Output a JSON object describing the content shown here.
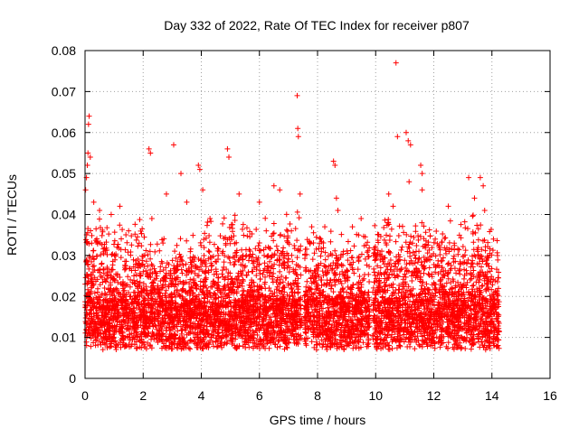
{
  "chart_data": {
    "type": "scatter",
    "title": "Day 332 of 2022, Rate Of TEC Index for receiver p807",
    "xlabel": "GPS time / hours",
    "ylabel": "ROTI / TECUs",
    "xlim": [
      0,
      16
    ],
    "ylim": [
      0,
      0.08
    ],
    "x_ticks": [
      0,
      2,
      4,
      6,
      8,
      10,
      12,
      14,
      16
    ],
    "x_tick_labels": [
      "0",
      "2",
      "4",
      "6",
      "8",
      "10",
      "12",
      "14",
      "16"
    ],
    "y_ticks": [
      0,
      0.01,
      0.02,
      0.03,
      0.04,
      0.05,
      0.06,
      0.07,
      0.08
    ],
    "y_tick_labels": [
      "0",
      "0.01",
      "0.02",
      "0.03",
      "0.04",
      "0.05",
      "0.06",
      "0.07",
      "0.08"
    ],
    "grid": true,
    "marker": "+",
    "marker_color": "#ff0000",
    "data_span_hours": [
      0,
      14.25
    ],
    "data_gaps_hours": [
      [
        7.45,
        7.55
      ],
      [
        8.0,
        8.1
      ],
      [
        9.8,
        9.9
      ]
    ],
    "series": [
      {
        "name": "ROTI",
        "points": [
          [
            0.02,
            0.046
          ],
          [
            0.05,
            0.049
          ],
          [
            0.08,
            0.052
          ],
          [
            0.1,
            0.055
          ],
          [
            0.12,
            0.062
          ],
          [
            0.14,
            0.064
          ],
          [
            0.18,
            0.054
          ],
          [
            0.3,
            0.043
          ],
          [
            0.5,
            0.041
          ],
          [
            0.9,
            0.04
          ],
          [
            1.2,
            0.042
          ],
          [
            1.5,
            0.036
          ],
          [
            2.2,
            0.056
          ],
          [
            2.25,
            0.055
          ],
          [
            2.3,
            0.039
          ],
          [
            2.8,
            0.045
          ],
          [
            3.05,
            0.057
          ],
          [
            3.3,
            0.05
          ],
          [
            3.5,
            0.043
          ],
          [
            3.9,
            0.052
          ],
          [
            3.95,
            0.051
          ],
          [
            4.05,
            0.046
          ],
          [
            4.3,
            0.039
          ],
          [
            4.9,
            0.056
          ],
          [
            4.95,
            0.054
          ],
          [
            5.3,
            0.045
          ],
          [
            6.0,
            0.043
          ],
          [
            6.5,
            0.047
          ],
          [
            6.7,
            0.046
          ],
          [
            7.1,
            0.036
          ],
          [
            7.3,
            0.069
          ],
          [
            7.32,
            0.061
          ],
          [
            7.34,
            0.059
          ],
          [
            7.4,
            0.045
          ],
          [
            7.8,
            0.037
          ],
          [
            8.55,
            0.053
          ],
          [
            8.6,
            0.052
          ],
          [
            8.65,
            0.044
          ],
          [
            8.7,
            0.041
          ],
          [
            9.2,
            0.037
          ],
          [
            9.5,
            0.039
          ],
          [
            10.45,
            0.045
          ],
          [
            10.6,
            0.042
          ],
          [
            10.7,
            0.077
          ],
          [
            10.75,
            0.059
          ],
          [
            11.05,
            0.06
          ],
          [
            11.12,
            0.058
          ],
          [
            11.2,
            0.057
          ],
          [
            11.15,
            0.048
          ],
          [
            11.55,
            0.052
          ],
          [
            11.6,
            0.05
          ],
          [
            11.6,
            0.046
          ],
          [
            12.5,
            0.042
          ],
          [
            13.2,
            0.049
          ],
          [
            13.4,
            0.044
          ],
          [
            13.6,
            0.049
          ],
          [
            13.7,
            0.047
          ],
          [
            13.75,
            0.041
          ]
        ]
      }
    ],
    "dense_cloud": {
      "description": "thousands of points between about 0.005 and 0.035",
      "typical_value": 0.013,
      "min_value": 0.003,
      "segments": [
        {
          "x_range": [
            0.0,
            2.0
          ],
          "low": 0.005,
          "high": 0.035
        },
        {
          "x_range": [
            2.0,
            4.0
          ],
          "low": 0.005,
          "high": 0.03
        },
        {
          "x_range": [
            4.0,
            7.45
          ],
          "low": 0.005,
          "high": 0.035
        },
        {
          "x_range": [
            7.55,
            9.8
          ],
          "low": 0.005,
          "high": 0.032
        },
        {
          "x_range": [
            9.9,
            14.25
          ],
          "low": 0.004,
          "high": 0.035
        }
      ]
    }
  }
}
